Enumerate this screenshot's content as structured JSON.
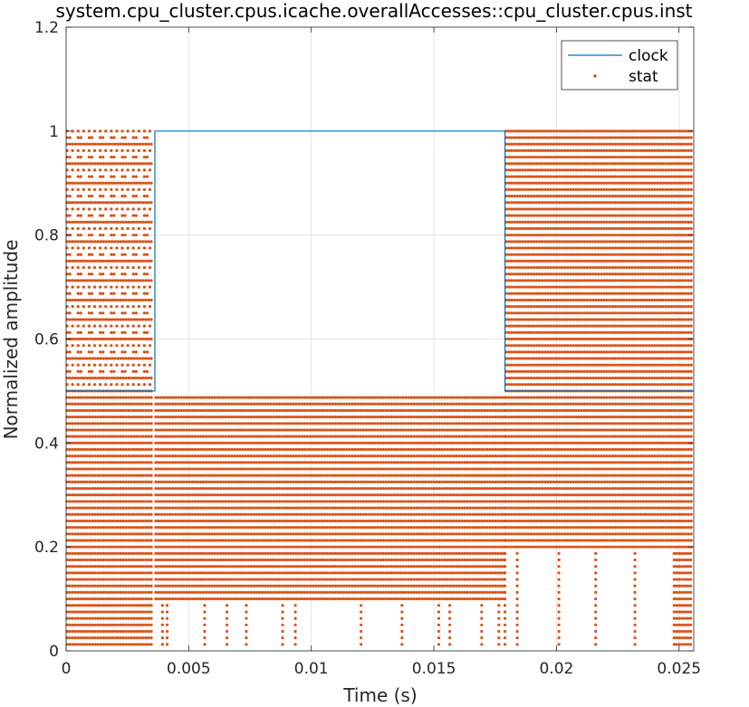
{
  "chart_data": {
    "type": "line",
    "title": "system.cpu_cluster.cpus.icache.overallAccesses::cpu_cluster.cpus.inst",
    "xlabel": "Time (s)",
    "ylabel": "Normalized amplitude",
    "xlim": [
      0,
      0.0256
    ],
    "ylim": [
      0,
      1.2
    ],
    "x_ticks": [
      0,
      0.005,
      0.01,
      0.015,
      0.02,
      0.025
    ],
    "x_tick_labels": [
      "0",
      "0.005",
      "0.01",
      "0.015",
      "0.02",
      "0.025"
    ],
    "y_ticks": [
      0,
      0.2,
      0.4,
      0.6,
      0.8,
      1,
      1.2
    ],
    "y_tick_labels": [
      "0",
      "0.2",
      "0.4",
      "0.6",
      "0.8",
      "1",
      "1.2"
    ],
    "grid": true,
    "legend_position": "top-right",
    "series": [
      {
        "name": "clock",
        "style": "line",
        "color": "#0072BD",
        "x": [
          0,
          0.00362,
          0.00362,
          0.0179,
          0.0179,
          0.0256
        ],
        "y": [
          0.5,
          0.5,
          1.0,
          1.0,
          0.5,
          0.5
        ]
      },
      {
        "name": "stat",
        "style": "dots",
        "color": "#D95319",
        "level_step": 0.0125,
        "regions": [
          {
            "x_start": 0,
            "x_end": 0.00362,
            "dense_y_min": 0.0125,
            "dense_y_max": 0.5,
            "sparse_y_min": 0.5125,
            "sparse_y_max": 1.0
          },
          {
            "x_start": 0.00362,
            "x_end": 0.0179,
            "dense_y_min": 0.1,
            "dense_y_max": 0.4875,
            "sparse_y_min": 0.0125,
            "sparse_y_max": 0.0875
          },
          {
            "x_start": 0.0179,
            "x_end": 0.0256,
            "dense_y_min": 0.2,
            "dense_y_max": 1.0,
            "sparse_y_min": 0.0125,
            "sparse_y_max": 0.1875
          }
        ]
      }
    ]
  }
}
